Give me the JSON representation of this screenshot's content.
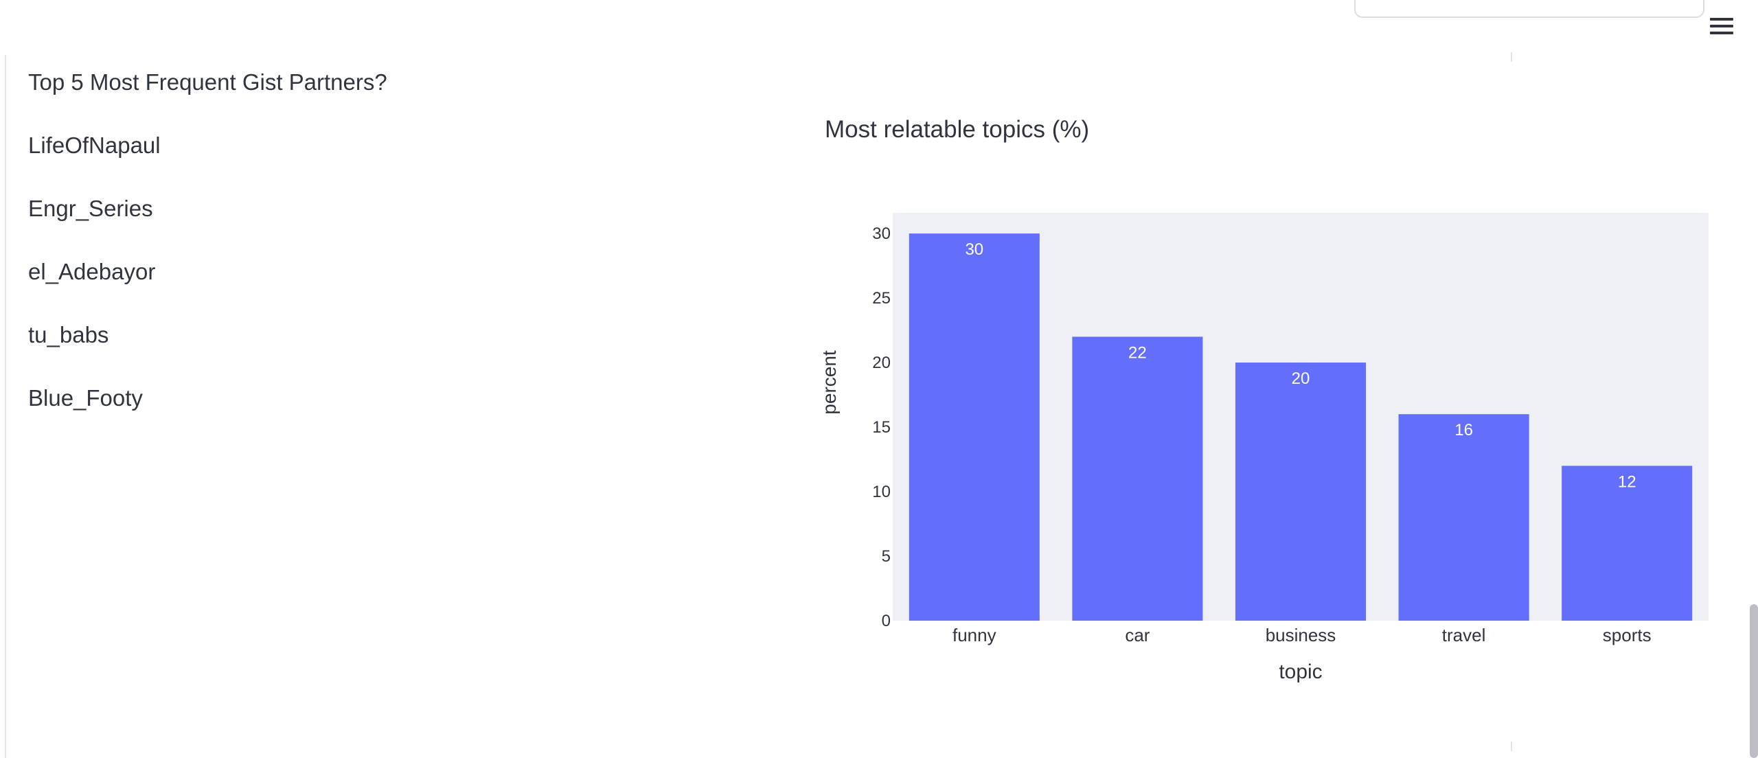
{
  "left_panel": {
    "heading": "Top 5 Most Frequent Gist Partners?",
    "partners": [
      "LifeOfNapaul",
      "Engr_Series",
      "el_Adebayor",
      "tu_babs",
      "Blue_Footy"
    ]
  },
  "icons": {
    "menu": "hamburger-menu-icon"
  },
  "colors": {
    "bar": "#636efa",
    "plot_bg": "#eff0f5",
    "text": "#31333f"
  },
  "chart_data": {
    "type": "bar",
    "title": "Most relatable topics (%)",
    "xlabel": "topic",
    "ylabel": "percent",
    "categories": [
      "funny",
      "car",
      "business",
      "travel",
      "sports"
    ],
    "values": [
      30,
      22,
      20,
      16,
      12
    ],
    "ylim": [
      0,
      31.6
    ],
    "yticks": [
      0,
      5,
      10,
      15,
      20,
      25,
      30
    ],
    "data_labels": [
      "30",
      "22",
      "20",
      "16",
      "12"
    ],
    "grid": false,
    "legend": "none"
  }
}
